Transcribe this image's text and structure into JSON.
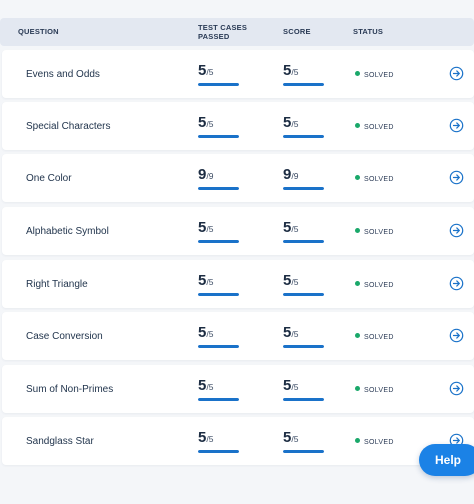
{
  "table": {
    "headers": {
      "question": "QUESTION",
      "tests_line1": "TEST CASES",
      "tests_line2": "PASSED",
      "score": "SCORE",
      "status": "STATUS"
    },
    "rows": [
      {
        "question": "Evens and Odds",
        "passed": "5",
        "passed_total": "/5",
        "score": "5",
        "score_total": "/5",
        "status": "SOLVED",
        "progress": 1.0
      },
      {
        "question": "Special Characters",
        "passed": "5",
        "passed_total": "/5",
        "score": "5",
        "score_total": "/5",
        "status": "SOLVED",
        "progress": 1.0
      },
      {
        "question": "One Color",
        "passed": "9",
        "passed_total": "/9",
        "score": "9",
        "score_total": "/9",
        "status": "SOLVED",
        "progress": 1.0
      },
      {
        "question": "Alphabetic Symbol",
        "passed": "5",
        "passed_total": "/5",
        "score": "5",
        "score_total": "/5",
        "status": "SOLVED",
        "progress": 1.0
      },
      {
        "question": "Right Triangle",
        "passed": "5",
        "passed_total": "/5",
        "score": "5",
        "score_total": "/5",
        "status": "SOLVED",
        "progress": 1.0
      },
      {
        "question": "Case Conversion",
        "passed": "5",
        "passed_total": "/5",
        "score": "5",
        "score_total": "/5",
        "status": "SOLVED",
        "progress": 1.0
      },
      {
        "question": "Sum of Non-Primes",
        "passed": "5",
        "passed_total": "/5",
        "score": "5",
        "score_total": "/5",
        "status": "SOLVED",
        "progress": 1.0
      },
      {
        "question": "Sandglass Star",
        "passed": "5",
        "passed_total": "/5",
        "score": "5",
        "score_total": "/5",
        "status": "SOLVED",
        "progress": 1.0
      }
    ]
  },
  "help_button": {
    "label": "Help"
  },
  "icons": {
    "row_action": "arrow-right-circle-icon",
    "status_dot": "status-dot-icon"
  },
  "colors": {
    "accent": "#1a72c9",
    "solved": "#1aa86a",
    "help_bg": "#1b82e6"
  }
}
